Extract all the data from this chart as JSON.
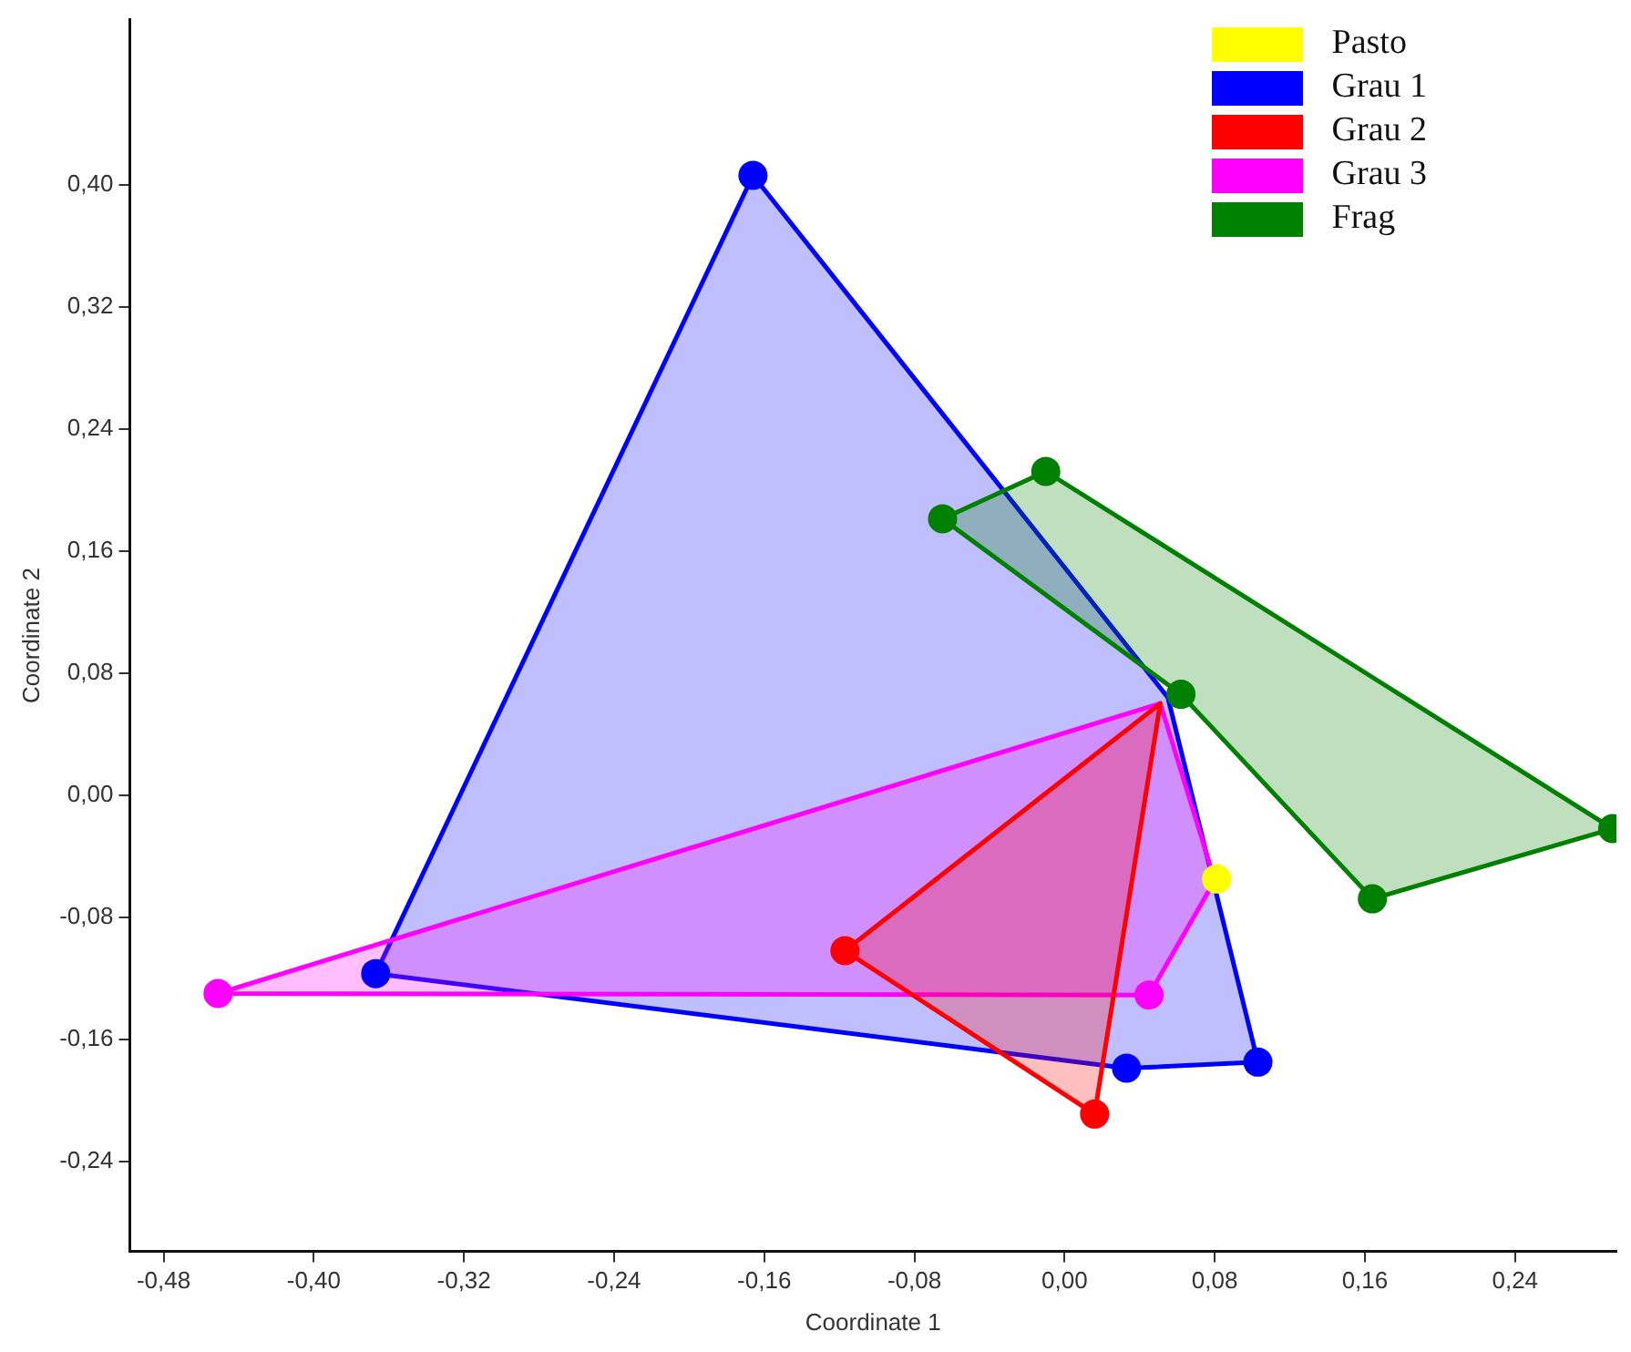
{
  "chart_data": {
    "type": "scatter",
    "xlabel": "Coordinate 1",
    "ylabel": "Coordinate 2",
    "xlim": [
      -0.498,
      0.294
    ],
    "ylim": [
      -0.299,
      0.508
    ],
    "xticks": [
      {
        "value": -0.48,
        "label": "-0,48"
      },
      {
        "value": -0.4,
        "label": "-0,40"
      },
      {
        "value": -0.32,
        "label": "-0,32"
      },
      {
        "value": -0.24,
        "label": "-0,24"
      },
      {
        "value": -0.16,
        "label": "-0,16"
      },
      {
        "value": -0.08,
        "label": "-0,08"
      },
      {
        "value": 0,
        "label": "0,00"
      },
      {
        "value": 0.08,
        "label": "0,08"
      },
      {
        "value": 0.16,
        "label": "0,16"
      },
      {
        "value": 0.24,
        "label": "0,24"
      }
    ],
    "yticks": [
      {
        "value": -0.24,
        "label": "-0,24"
      },
      {
        "value": -0.16,
        "label": "-0,16"
      },
      {
        "value": -0.08,
        "label": "-0,08"
      },
      {
        "value": 0,
        "label": "0,00"
      },
      {
        "value": 0.08,
        "label": "0,08"
      },
      {
        "value": 0.16,
        "label": "0,16"
      },
      {
        "value": 0.24,
        "label": "0,24"
      },
      {
        "value": 0.32,
        "label": "0,32"
      },
      {
        "value": 0.4,
        "label": "0,40"
      }
    ],
    "grid": false,
    "legend": "top right",
    "marker": "circle",
    "series": [
      {
        "type": "area",
        "marker": "none",
        "color": "#0000ff",
        "x": [
          -0.166,
          0.055,
          0.103,
          0.033,
          -0.367
        ],
        "values": [
          0.406,
          0.064,
          -0.175,
          -0.179,
          -0.117
        ]
      },
      {
        "type": "area",
        "marker": "none",
        "color": "#ff00ff",
        "x": [
          -0.451,
          0.051,
          0.08,
          0.045
        ],
        "values": [
          -0.13,
          0.06,
          -0.056,
          -0.131
        ]
      },
      {
        "type": "area",
        "marker": "none",
        "color": "#ff0000",
        "x": [
          -0.117,
          0.051,
          0.016
        ],
        "values": [
          -0.102,
          0.06,
          -0.209
        ]
      },
      {
        "type": "area",
        "marker": "none",
        "color": "#008000",
        "x": [
          -0.065,
          -0.01,
          0.292,
          0.164,
          0.062
        ],
        "values": [
          0.181,
          0.212,
          -0.022,
          -0.068,
          0.066
        ]
      },
      {
        "name": "Pasto",
        "color": "#ffff00",
        "x": [
          0.081
        ],
        "values": [
          -0.055
        ]
      },
      {
        "name": "Grau 1",
        "color": "#0000ff",
        "x": [
          -0.166,
          -0.367,
          0.033,
          0.103
        ],
        "values": [
          0.406,
          -0.117,
          -0.179,
          -0.175
        ]
      },
      {
        "name": "Grau 2",
        "color": "#ff0000",
        "x": [
          -0.117,
          0.016
        ],
        "values": [
          -0.102,
          -0.209
        ]
      },
      {
        "name": "Grau 3",
        "color": "#ff00ff",
        "x": [
          -0.451,
          0.045
        ],
        "values": [
          -0.13,
          -0.131
        ]
      },
      {
        "name": "Frag",
        "color": "#008000",
        "x": [
          -0.065,
          -0.01,
          0.062,
          0.164,
          0.292
        ],
        "values": [
          0.181,
          0.212,
          0.066,
          -0.068,
          -0.022
        ]
      }
    ]
  }
}
